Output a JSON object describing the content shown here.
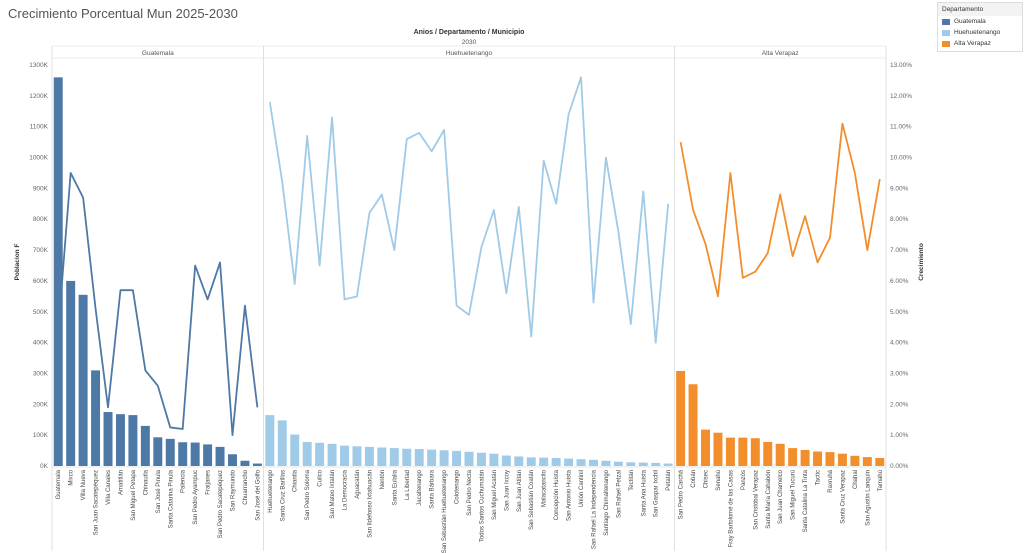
{
  "title": "Crecimiento Porcentual Mun 2025-2030",
  "legend": {
    "title": "Departamento",
    "items": [
      {
        "label": "Guatemala",
        "color": "#4e79a7"
      },
      {
        "label": "Huehuetenango",
        "color": "#a0cbe8"
      },
      {
        "label": "Alta Verapaz",
        "color": "#f28e2b"
      }
    ]
  },
  "chart_data": {
    "type": "bar",
    "column_header_title": "Anios / Departamento / Municipio",
    "column_header_year": "2030",
    "ylabel": "Poblacion F",
    "y2label": "Crecimiento",
    "ylim": [
      0,
      1300000
    ],
    "y2lim": [
      0,
      13
    ],
    "yticks": [
      "0K",
      "100K",
      "200K",
      "300K",
      "400K",
      "500K",
      "600K",
      "700K",
      "800K",
      "900K",
      "1000K",
      "1100K",
      "1200K",
      "1300K"
    ],
    "y2ticks": [
      "0.00%",
      "1.00%",
      "2.00%",
      "3.00%",
      "4.00%",
      "5.00%",
      "6.00%",
      "7.00%",
      "8.00%",
      "9.00%",
      "10.00%",
      "11.00%",
      "12.00%",
      "13.00%"
    ],
    "panels": [
      {
        "name": "Guatemala",
        "color": "#4e79a7",
        "line_color": "#4e79a7",
        "categories": [
          "Guatemala",
          "Mixco",
          "Villa Nueva",
          "San Juan Sacatepéquez",
          "Villa Canales",
          "Amatitlán",
          "San Miguel Petapa",
          "Chinautla",
          "San José Pinula",
          "Santa Catarina Pinula",
          "Palencia",
          "San Pedro Ayampuc",
          "Fraijanes",
          "San Pedro Sacatepéquez",
          "San Raymundo",
          "Chuarrancho",
          "San José del Golfo"
        ],
        "population": [
          1260000,
          600000,
          555000,
          310000,
          175000,
          168000,
          165000,
          130000,
          93000,
          88000,
          77000,
          76000,
          70000,
          62000,
          38000,
          17000,
          8000
        ],
        "growth": [
          4.4,
          9.5,
          8.7,
          5.1,
          1.9,
          5.7,
          5.7,
          3.1,
          2.6,
          1.25,
          1.2,
          6.5,
          5.4,
          6.6,
          1.0,
          5.2,
          1.9
        ]
      },
      {
        "name": "Huehuetenango",
        "color": "#a0cbe8",
        "line_color": "#a0cbe8",
        "categories": [
          "Huehuetenango",
          "Santa Cruz Barillas",
          "Chiantla",
          "San Pedro Soloma",
          "Cuilco",
          "San Mateo Ixtatán",
          "La Democracia",
          "Aguacatán",
          "San Ildefonso Ixtahuacán",
          "Nentón",
          "Santa Eulalia",
          "La Libertad",
          "Jacaltenango",
          "Santa Bárbara",
          "San Sebastián Huehuetenango",
          "Colotenango",
          "San Pedro Necta",
          "Todos Santos Cuchumatán",
          "San Miguel Acatán",
          "San Juan Ixcoy",
          "San Juan Atitán",
          "San Sebastián Coatán",
          "Malacatancito",
          "Concepción Huista",
          "San Antonio Huista",
          "Unión Cantinil",
          "San Rafael La Independencia",
          "Santiago Chimaltenango",
          "San Rafael Petzal",
          "Tectitán",
          "Santa Ana Huista",
          "San Gaspar Ixchil",
          "Petatán"
        ],
        "population": [
          165000,
          148000,
          102000,
          78000,
          75000,
          72000,
          66000,
          64000,
          62000,
          60000,
          58000,
          56000,
          55000,
          53000,
          51000,
          49000,
          46000,
          43000,
          40000,
          34000,
          31000,
          28000,
          27000,
          26000,
          24000,
          22000,
          20000,
          17000,
          14000,
          12000,
          11000,
          10000,
          8000
        ],
        "growth": [
          11.8,
          9.2,
          5.9,
          10.7,
          6.5,
          11.3,
          5.4,
          5.5,
          8.2,
          8.8,
          7.0,
          10.6,
          10.8,
          10.2,
          10.9,
          5.2,
          4.9,
          7.1,
          8.3,
          5.6,
          8.4,
          4.2,
          9.9,
          8.5,
          11.4,
          12.6,
          5.3,
          10.0,
          7.6,
          4.6,
          8.9,
          4.0,
          8.5
        ]
      },
      {
        "name": "Alta Verapaz",
        "color": "#f28e2b",
        "line_color": "#f28e2b",
        "categories": [
          "San Pedro Carchá",
          "Cobán",
          "Chisec",
          "Senahú",
          "Fray Bartolomé de las Casas",
          "Panzós",
          "San Cristóbal Verapaz",
          "Santa María Cahabón",
          "San Juan Chamelco",
          "San Miguel Tucurú",
          "Santa Catalina La Tinta",
          "Tactic",
          "Raxruhá",
          "Santa Cruz Verapaz",
          "Chahal",
          "San Agustín Lanquín",
          "Tamahú"
        ],
        "population": [
          308000,
          265000,
          118000,
          108000,
          92000,
          92000,
          90000,
          78000,
          72000,
          58000,
          52000,
          47000,
          45000,
          40000,
          33000,
          29000,
          26000
        ],
        "growth": [
          10.5,
          8.3,
          7.2,
          5.5,
          9.5,
          6.1,
          6.3,
          6.9,
          8.8,
          6.8,
          8.1,
          6.6,
          7.4,
          11.1,
          9.5,
          7.0,
          9.3
        ]
      }
    ]
  }
}
